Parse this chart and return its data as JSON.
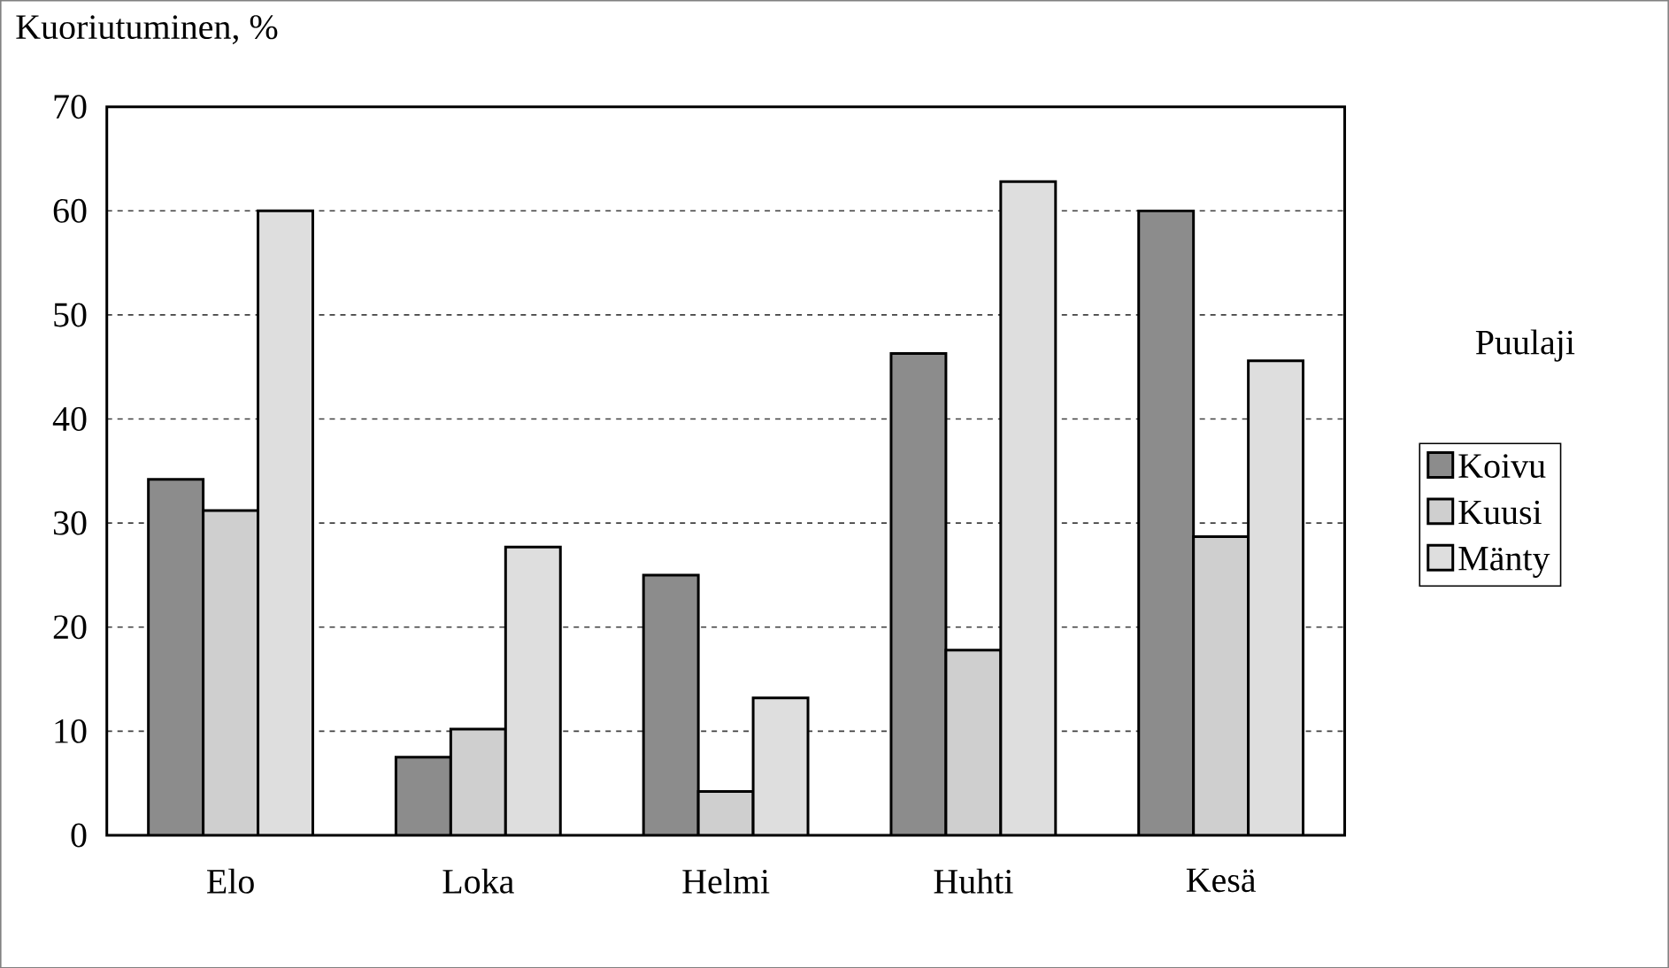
{
  "chart_data": {
    "type": "bar",
    "ylabel": "Kuoriutuminen, %",
    "legend_title": "Puulaji",
    "categories": [
      "Elo",
      "Loka",
      "Helmi",
      "Huhti",
      "Kesä"
    ],
    "series": [
      {
        "name": "Koivu",
        "color": "#8c8c8c",
        "values": [
          34.2,
          7.5,
          25.0,
          46.3,
          60.0
        ]
      },
      {
        "name": "Kuusi",
        "color": "#cfcfcf",
        "values": [
          31.2,
          10.2,
          4.2,
          17.8,
          28.7
        ]
      },
      {
        "name": "Mänty",
        "color": "#dedede",
        "values": [
          60.0,
          27.7,
          13.2,
          62.8,
          45.6
        ]
      }
    ],
    "ylim": [
      0,
      70
    ],
    "yticks": [
      0,
      10,
      20,
      30,
      40,
      50,
      60,
      70
    ],
    "grid": "y",
    "legend": "right"
  }
}
